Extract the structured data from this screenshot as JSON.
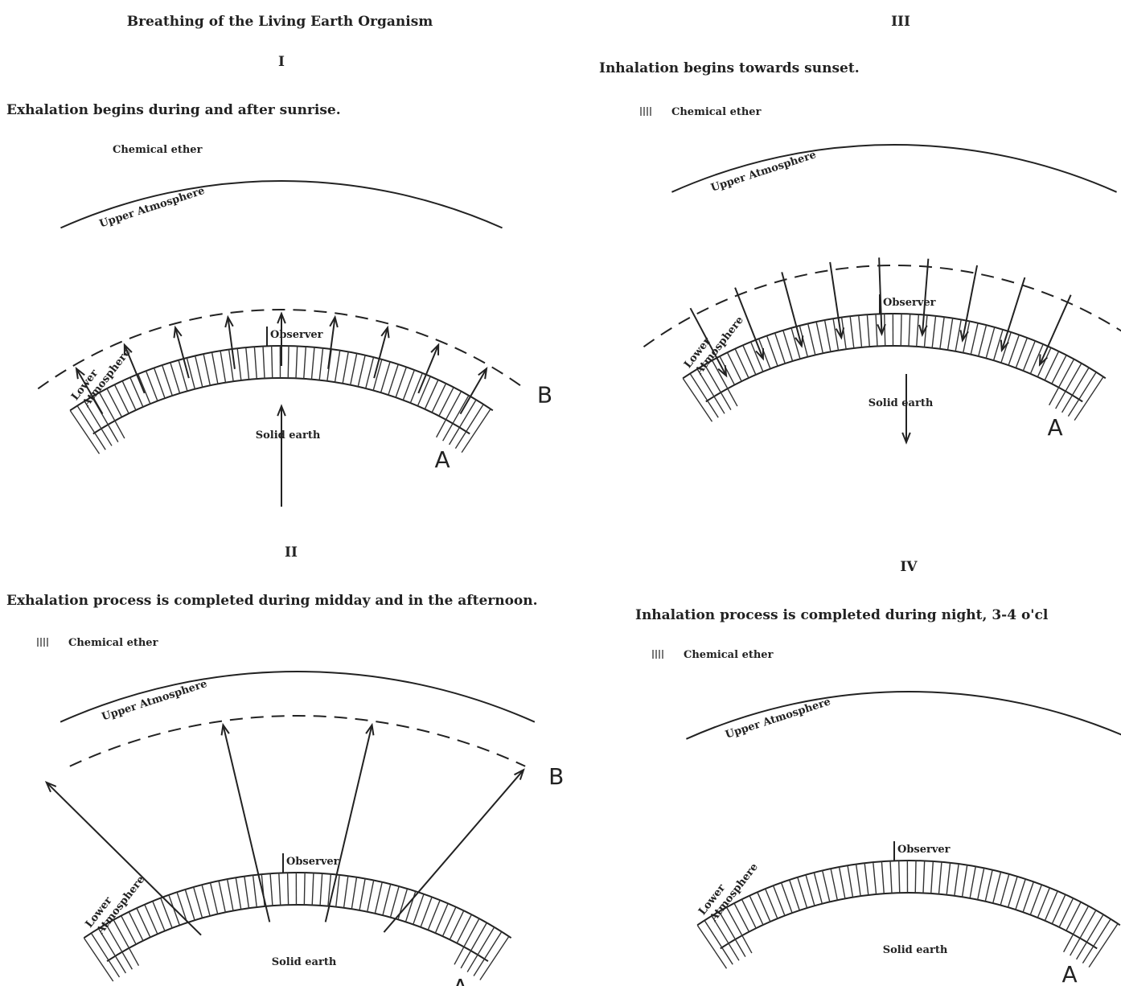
{
  "title": "Breathing of the Living Earth Organism",
  "panels": [
    {
      "numeral": "I",
      "caption": "Exhalation begins during and after sunrise.",
      "legend": "Chemical ether",
      "upper": "Upper Atmosphere",
      "lower": [
        "Lower",
        "Atmosphere"
      ],
      "observer": "Observer",
      "earth": "Solid earth",
      "a": "A",
      "b": "B"
    },
    {
      "numeral": "II",
      "caption": "Exhalation process is completed during midday and in the afternoon.",
      "legend": "Chemical ether",
      "upper": "Upper Atmosphere",
      "lower": [
        "Lower",
        "Atmosphere"
      ],
      "observer": "Observer",
      "earth": "Solid earth",
      "a": "A",
      "b": "B"
    },
    {
      "numeral": "III",
      "caption": "Inhalation begins towards sunset.",
      "legend": "Chemical ether",
      "upper": "Upper Atmosphere",
      "lower": [
        "Lower",
        "Atmosphere"
      ],
      "observer": "Observer",
      "earth": "Solid earth",
      "a": "A"
    },
    {
      "numeral": "IV",
      "caption": "Inhalation process is completed during night, 3-4 o'cl",
      "legend": "Chemical ether",
      "upper": "Upper Atmosphere",
      "lower": [
        "Lower",
        "Atmosphere"
      ],
      "observer": "Observer",
      "earth": "Solid earth",
      "a": "A"
    }
  ]
}
